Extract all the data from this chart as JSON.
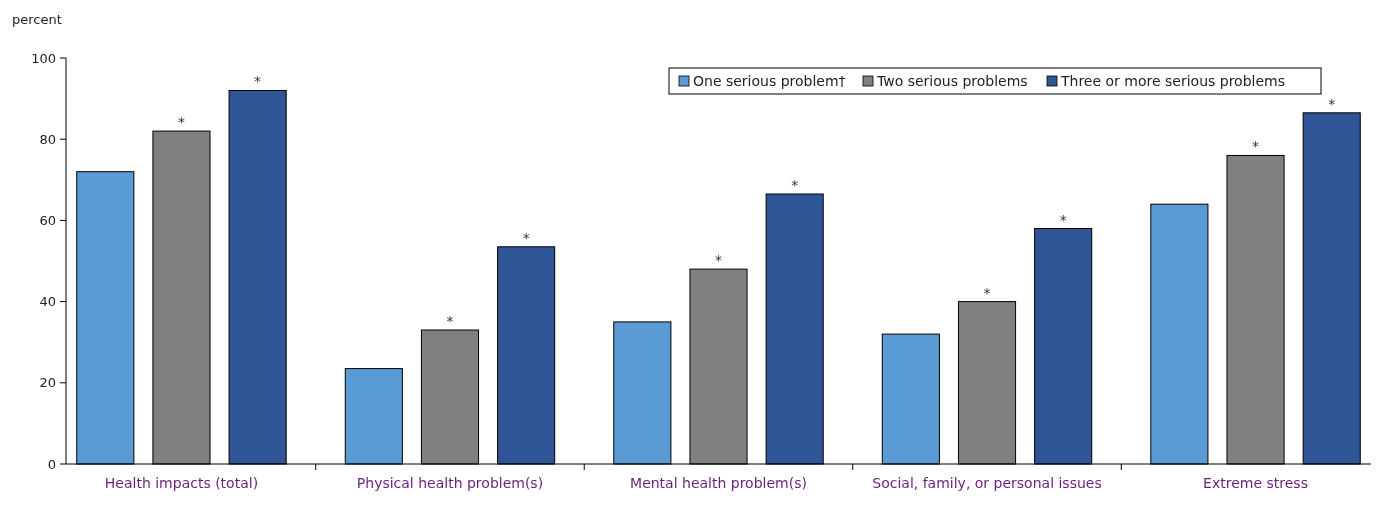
{
  "chart_data": {
    "type": "bar",
    "ylabel": "percent",
    "categories": [
      "Health impacts (total)",
      "Physical health problem(s)",
      "Mental health problem(s)",
      "Social, family, or personal issues",
      "Extreme stress"
    ],
    "series": [
      {
        "name": "One serious problem†",
        "color": "#5b9bd5",
        "values": [
          72,
          23.5,
          35,
          32,
          64
        ]
      },
      {
        "name": "Two serious problems",
        "color": "#808080",
        "values": [
          82,
          33,
          48,
          40,
          76
        ],
        "value_labels": [
          "*",
          "*",
          "*",
          "*",
          "*"
        ]
      },
      {
        "name": "Three or more serious problems",
        "color": "#2f5597",
        "values": [
          92,
          53.5,
          66.5,
          58,
          86.5
        ],
        "value_labels": [
          "*",
          "*",
          "*",
          "*",
          "*"
        ]
      }
    ],
    "ylim": [
      0,
      100
    ],
    "yticks": [
      0,
      20,
      40,
      60,
      80,
      100
    ],
    "grid": false,
    "legend": "top right"
  }
}
